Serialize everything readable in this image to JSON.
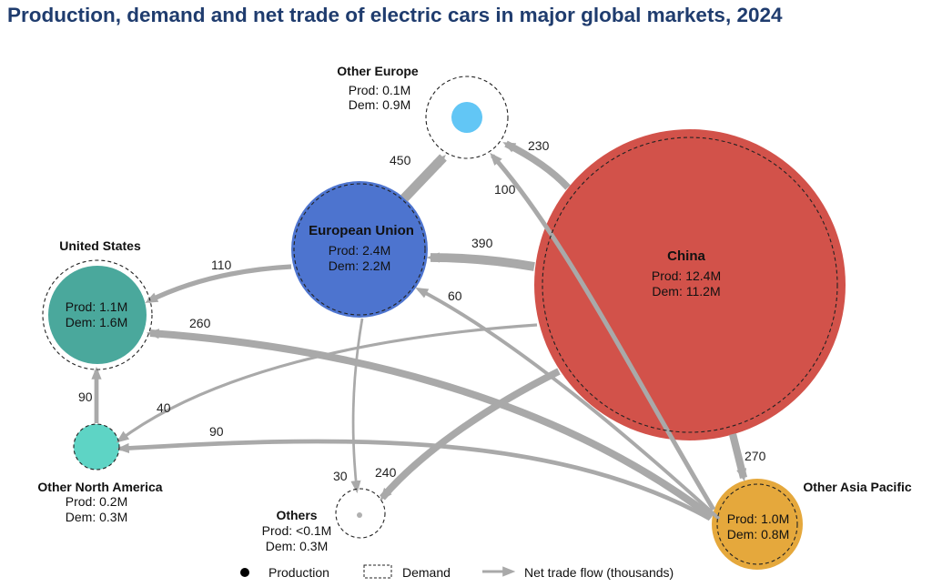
{
  "title": "Production, demand and net trade of electric cars in major global markets, 2024",
  "colors": {
    "china": "#d2524a",
    "european_union": "#4d74cf",
    "united_states": "#4aa89c",
    "other_north_america": "#5ed4c5",
    "other_europe": "#62c6f5",
    "other_asia_pacific": "#e5a83c",
    "others": "#b0b0b0",
    "arrow": "#a9a9a9",
    "title": "#1f3c6e"
  },
  "nodes": [
    {
      "id": "china",
      "name": "China",
      "prod_label": "Prod: 12.4M",
      "dem_label": "Dem: 11.2M"
    },
    {
      "id": "european_union",
      "name": "European Union",
      "prod_label": "Prod: 2.4M",
      "dem_label": "Dem: 2.2M"
    },
    {
      "id": "united_states",
      "name": "United States",
      "prod_label": "Prod: 1.1M",
      "dem_label": "Dem: 1.6M"
    },
    {
      "id": "other_europe",
      "name": "Other Europe",
      "prod_label": "Prod: 0.1M",
      "dem_label": "Dem: 0.9M"
    },
    {
      "id": "other_north_america",
      "name": "Other North America",
      "prod_label": "Prod: 0.2M",
      "dem_label": "Dem: 0.3M"
    },
    {
      "id": "others",
      "name": "Others",
      "prod_label": "Prod: <0.1M",
      "dem_label": "Dem: 0.3M"
    },
    {
      "id": "other_asia_pacific",
      "name": "Other Asia Pacific",
      "prod_label": "Prod: 1.0M",
      "dem_label": "Dem: 0.8M"
    }
  ],
  "flows": [
    {
      "id": "eu_to_other_europe",
      "from": "European Union",
      "to": "Other Europe",
      "value": 450
    },
    {
      "id": "china_to_other_europe",
      "from": "China",
      "to": "Other Europe",
      "value": 230
    },
    {
      "id": "oap_to_other_europe",
      "from": "Other Asia Pacific",
      "to": "Other Europe",
      "value": 100
    },
    {
      "id": "china_to_eu",
      "from": "China",
      "to": "European Union",
      "value": 390
    },
    {
      "id": "eu_to_us",
      "from": "European Union",
      "to": "United States",
      "value": 110
    },
    {
      "id": "oap_to_eu",
      "from": "Other Asia Pacific",
      "to": "European Union",
      "value": 60
    },
    {
      "id": "oap_to_us",
      "from": "Other Asia Pacific",
      "to": "United States",
      "value": 260
    },
    {
      "id": "ona_to_us",
      "from": "Other North America",
      "to": "United States",
      "value": 90
    },
    {
      "id": "china_to_ona",
      "from": "China",
      "to": "Other North America",
      "value": 40
    },
    {
      "id": "oap_to_ona",
      "from": "Other Asia Pacific",
      "to": "Other North America",
      "value": 90
    },
    {
      "id": "eu_to_others",
      "from": "European Union",
      "to": "Others",
      "value": 30
    },
    {
      "id": "china_to_others",
      "from": "China",
      "to": "Others",
      "value": 240
    },
    {
      "id": "china_to_oap",
      "from": "China",
      "to": "Other Asia Pacific",
      "value": 270
    }
  ],
  "legend": {
    "production": "Production",
    "demand": "Demand",
    "net_trade": "Net trade flow (thousands)"
  }
}
